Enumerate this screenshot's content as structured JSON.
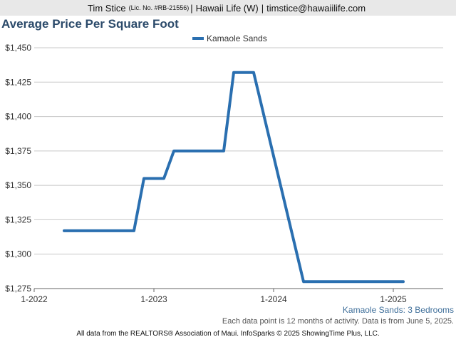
{
  "header": {
    "name": "Tim Stice",
    "license": "(Lic. No. #RB-21556)",
    "separator": "|",
    "company": "Hawaii Life (W)",
    "email": "timstice@hawaiilife.com"
  },
  "chart_data": {
    "type": "line",
    "title": "Average Price Per Square Foot",
    "legend": "top-center",
    "series": [
      {
        "name": "Kamaole Sands",
        "color": "#2a6fb0",
        "points": [
          [
            "2022-04",
            1317
          ],
          [
            "2022-11",
            1317
          ],
          [
            "2022-12",
            1355
          ],
          [
            "2023-02",
            1355
          ],
          [
            "2023-03",
            1375
          ],
          [
            "2023-08",
            1375
          ],
          [
            "2023-09",
            1432
          ],
          [
            "2023-11",
            1432
          ],
          [
            "2024-04",
            1280
          ],
          [
            "2025-02",
            1280
          ]
        ]
      }
    ],
    "x_ticks": [
      "1-2022",
      "1-2023",
      "1-2024",
      "1-2025"
    ],
    "y_ticks": [
      "$1,275",
      "$1,300",
      "$1,325",
      "$1,350",
      "$1,375",
      "$1,400",
      "$1,425",
      "$1,450"
    ],
    "ylim": [
      1275,
      1450
    ],
    "xlim": [
      "2022-01",
      "2025-06"
    ],
    "grid": "horizontal"
  },
  "caption": "Kamaole Sands: 3 Bedrooms",
  "note": "Each data point is 12 months of activity. Data is from June 5, 2025.",
  "footer": "All data from the REALTORS® Association of Maui. InfoSparks © 2025 ShowingTime Plus, LLC."
}
